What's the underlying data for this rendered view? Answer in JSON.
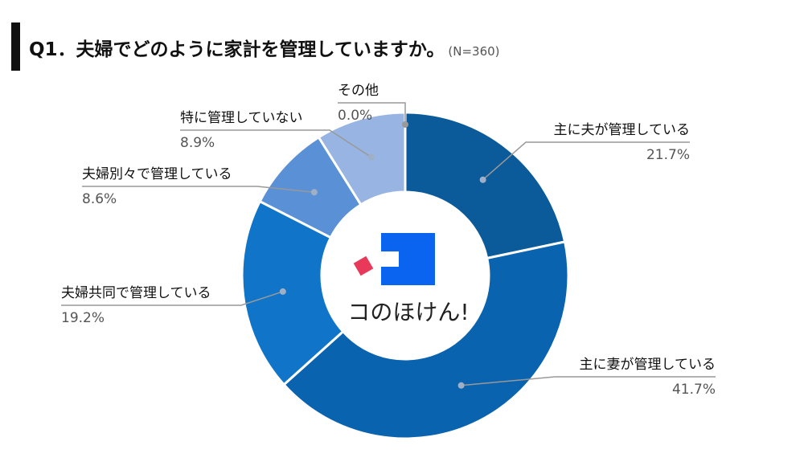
{
  "header": {
    "title": "Q1．夫婦でどのように家計を管理していますか。",
    "sample_size": "(N=360)"
  },
  "logo": {
    "text": "コのほけん!",
    "accent_red": "#e8395a",
    "accent_blue": "#0a64f0"
  },
  "chart_data": {
    "type": "pie",
    "style": "donut",
    "legend": "callout-labels",
    "slices": [
      {
        "label": "主に夫が管理している",
        "value": 21.7,
        "value_text": "21.7%",
        "color": "#0b5a99"
      },
      {
        "label": "主に妻が管理している",
        "value": 41.7,
        "value_text": "41.7%",
        "color": "#0a63ae"
      },
      {
        "label": "夫婦共同で管理している",
        "value": 19.2,
        "value_text": "19.2%",
        "color": "#1075c9"
      },
      {
        "label": "夫婦別々で管理している",
        "value": 8.6,
        "value_text": "8.6%",
        "color": "#5a90d6"
      },
      {
        "label": "特に管理していない",
        "value": 8.9,
        "value_text": "8.9%",
        "color": "#97b4e2"
      },
      {
        "label": "その他",
        "value": 0.0,
        "value_text": "0.0%",
        "color": "#b9cbea"
      }
    ]
  }
}
